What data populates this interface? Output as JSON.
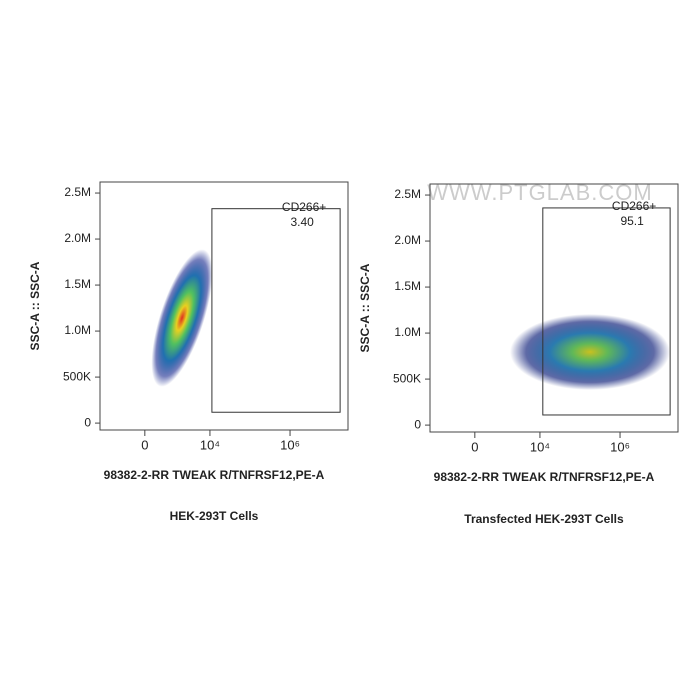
{
  "watermark": "WWW.PTGLAB.COM",
  "chart_data": [
    {
      "type": "scatter",
      "caption": "HEK-293T Cells",
      "xlabel": "98382-2-RR TWEAK R/TNFRSF12,PE-A",
      "ylabel": "SSC-A :: SSC-A",
      "xlim": [
        -3100,
        28000000
      ],
      "xticks": [
        0,
        {
          "value": 10000,
          "label": "10⁴"
        },
        {
          "value": 1000000,
          "label": "10⁶"
        }
      ],
      "ylim": [
        -75000,
        2620000
      ],
      "yticks": [
        0,
        {
          "value": 500000,
          "label": "500K"
        },
        {
          "value": 1000000,
          "label": "1.0M"
        },
        {
          "value": 1500000,
          "label": "1.5M"
        },
        {
          "value": 2000000,
          "label": "2.0M"
        },
        {
          "value": 2500000,
          "label": "2.5M"
        }
      ],
      "gate": {
        "name": "CD266+",
        "value": 3.4,
        "value_label": "3.40",
        "x": [
          11200,
          17800000
        ],
        "y": [
          118000,
          2330000
        ]
      }
    },
    {
      "type": "scatter",
      "caption": "Transfected HEK-293T Cells",
      "xlabel": "98382-2-RR TWEAK R/TNFRSF12,PE-A",
      "ylabel": "SSC-A :: SSC-A",
      "xlim": [
        -3100,
        28000000
      ],
      "xticks": [
        0,
        {
          "value": 10000,
          "label": "10⁴"
        },
        {
          "value": 1000000,
          "label": "10⁶"
        }
      ],
      "ylim": [
        -75000,
        2620000
      ],
      "yticks": [
        0,
        {
          "value": 500000,
          "label": "500K"
        },
        {
          "value": 1000000,
          "label": "1.0M"
        },
        {
          "value": 1500000,
          "label": "1.5M"
        },
        {
          "value": 2000000,
          "label": "2.0M"
        },
        {
          "value": 2500000,
          "label": "2.5M"
        }
      ],
      "gate": {
        "name": "CD266+",
        "value": 95.1,
        "x": [
          11800,
          17800000
        ],
        "y": [
          110000,
          2360000
        ]
      }
    }
  ]
}
